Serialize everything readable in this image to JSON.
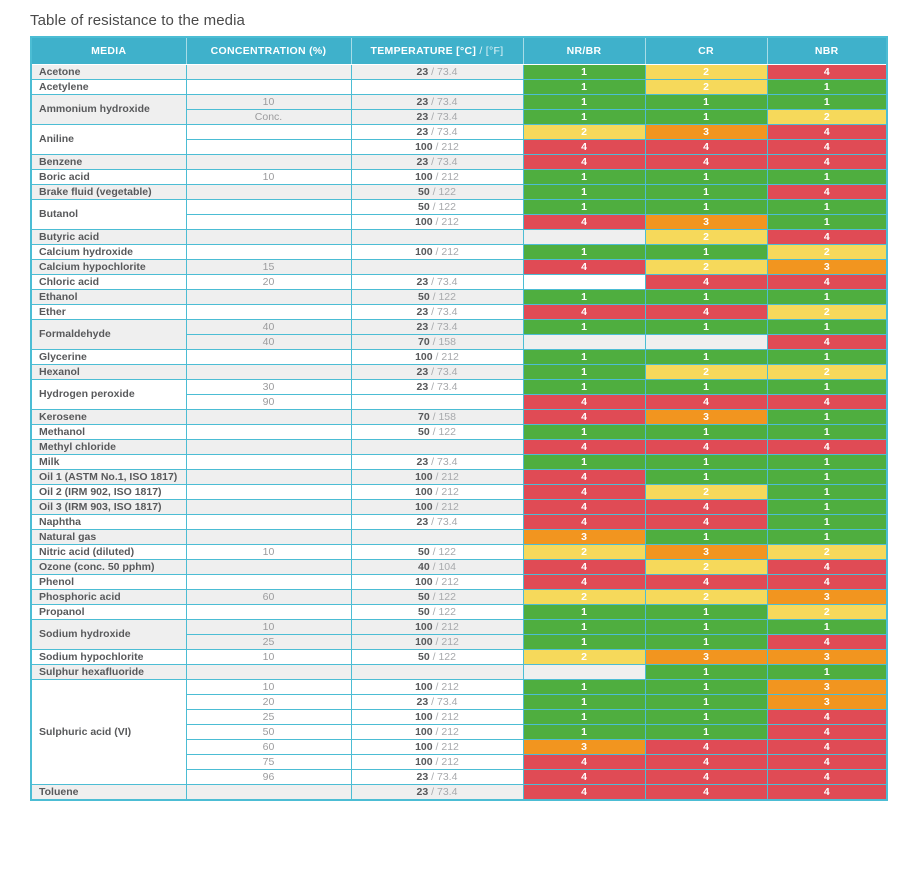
{
  "title": "Table of resistance to the media",
  "colors": {
    "header_bg": "#3FB1CB",
    "grid": "#4CBDD4",
    "row_shade": "#EFEFEF",
    "row_plain": "#FFFFFF",
    "rating_text": "#FFFFFF",
    "rating": {
      "1": "#4FAE3F",
      "2": "#F6D95B",
      "3": "#F2951F",
      "4": "#E04B55"
    }
  },
  "table": {
    "headers": {
      "media": "MEDIA",
      "concentration": "CONCENTRATION (%)",
      "temperature_c": "TEMPERATURE [°C]",
      "temperature_f": " / [°F]",
      "nrbr": "NR/BR",
      "cr": "CR",
      "nbr": "NBR"
    },
    "groups": [
      {
        "media": "Acetone",
        "rows": [
          {
            "conc": "",
            "c": "23",
            "f": "73.4",
            "nrbr": 1,
            "cr": 2,
            "nbr": 4
          }
        ]
      },
      {
        "media": "Acetylene",
        "rows": [
          {
            "conc": "",
            "c": "",
            "f": "",
            "nrbr": 1,
            "cr": 2,
            "nbr": 1
          }
        ]
      },
      {
        "media": "Ammonium hydroxide",
        "rows": [
          {
            "conc": "10",
            "c": "23",
            "f": "73.4",
            "nrbr": 1,
            "cr": 1,
            "nbr": 1
          },
          {
            "conc": "Conc.",
            "c": "23",
            "f": "73.4",
            "nrbr": 1,
            "cr": 1,
            "nbr": 2
          }
        ]
      },
      {
        "media": "Aniline",
        "rows": [
          {
            "conc": "",
            "c": "23",
            "f": "73.4",
            "nrbr": 2,
            "cr": 3,
            "nbr": 4
          },
          {
            "conc": "",
            "c": "100",
            "f": "212",
            "nrbr": 4,
            "cr": 4,
            "nbr": 4
          }
        ]
      },
      {
        "media": "Benzene",
        "rows": [
          {
            "conc": "",
            "c": "23",
            "f": "73.4",
            "nrbr": 4,
            "cr": 4,
            "nbr": 4
          }
        ]
      },
      {
        "media": "Boric acid",
        "rows": [
          {
            "conc": "10",
            "c": "100",
            "f": "212",
            "nrbr": 1,
            "cr": 1,
            "nbr": 1
          }
        ]
      },
      {
        "media": "Brake fluid (vegetable)",
        "rows": [
          {
            "conc": "",
            "c": "50",
            "f": "122",
            "nrbr": 1,
            "cr": 1,
            "nbr": 4
          }
        ]
      },
      {
        "media": "Butanol",
        "rows": [
          {
            "conc": "",
            "c": "50",
            "f": "122",
            "nrbr": 1,
            "cr": 1,
            "nbr": 1
          },
          {
            "conc": "",
            "c": "100",
            "f": "212",
            "nrbr": 4,
            "cr": 3,
            "nbr": 1
          }
        ]
      },
      {
        "media": "Butyric acid",
        "rows": [
          {
            "conc": "",
            "c": "",
            "f": "",
            "nrbr": null,
            "cr": 2,
            "nbr": 4
          }
        ]
      },
      {
        "media": "Calcium hydroxide",
        "rows": [
          {
            "conc": "",
            "c": "100",
            "f": "212",
            "nrbr": 1,
            "cr": 1,
            "nbr": 2
          }
        ]
      },
      {
        "media": "Calcium hypochlorite",
        "rows": [
          {
            "conc": "15",
            "c": "",
            "f": "",
            "nrbr": 4,
            "cr": 2,
            "nbr": 3
          }
        ]
      },
      {
        "media": "Chloric acid",
        "rows": [
          {
            "conc": "20",
            "c": "23",
            "f": "73.4",
            "nrbr": null,
            "cr": 4,
            "nbr": 4
          }
        ]
      },
      {
        "media": "Ethanol",
        "rows": [
          {
            "conc": "",
            "c": "50",
            "f": "122",
            "nrbr": 1,
            "cr": 1,
            "nbr": 1
          }
        ]
      },
      {
        "media": "Ether",
        "rows": [
          {
            "conc": "",
            "c": "23",
            "f": "73.4",
            "nrbr": 4,
            "cr": 4,
            "nbr": 2
          }
        ]
      },
      {
        "media": "Formaldehyde",
        "rows": [
          {
            "conc": "40",
            "c": "23",
            "f": "73.4",
            "nrbr": 1,
            "cr": 1,
            "nbr": 1
          },
          {
            "conc": "40",
            "c": "70",
            "f": "158",
            "nrbr": null,
            "cr": null,
            "nbr": 4
          }
        ]
      },
      {
        "media": "Glycerine",
        "rows": [
          {
            "conc": "",
            "c": "100",
            "f": "212",
            "nrbr": 1,
            "cr": 1,
            "nbr": 1
          }
        ]
      },
      {
        "media": "Hexanol",
        "rows": [
          {
            "conc": "",
            "c": "23",
            "f": "73.4",
            "nrbr": 1,
            "cr": 2,
            "nbr": 2
          }
        ]
      },
      {
        "media": "Hydrogen peroxide",
        "rows": [
          {
            "conc": "30",
            "c": "23",
            "f": "73.4",
            "nrbr": 1,
            "cr": 1,
            "nbr": 1
          },
          {
            "conc": "90",
            "c": "",
            "f": "",
            "nrbr": 4,
            "cr": 4,
            "nbr": 4
          }
        ]
      },
      {
        "media": "Kerosene",
        "rows": [
          {
            "conc": "",
            "c": "70",
            "f": "158",
            "nrbr": 4,
            "cr": 3,
            "nbr": 1
          }
        ]
      },
      {
        "media": "Methanol",
        "rows": [
          {
            "conc": "",
            "c": "50",
            "f": "122",
            "nrbr": 1,
            "cr": 1,
            "nbr": 1
          }
        ]
      },
      {
        "media": "Methyl chloride",
        "rows": [
          {
            "conc": "",
            "c": "",
            "f": "",
            "nrbr": 4,
            "cr": 4,
            "nbr": 4
          }
        ]
      },
      {
        "media": "Milk",
        "rows": [
          {
            "conc": "",
            "c": "23",
            "f": "73.4",
            "nrbr": 1,
            "cr": 1,
            "nbr": 1
          }
        ]
      },
      {
        "media": "Oil 1 (ASTM No.1, ISO 1817)",
        "rows": [
          {
            "conc": "",
            "c": "100",
            "f": "212",
            "nrbr": 4,
            "cr": 1,
            "nbr": 1
          }
        ]
      },
      {
        "media": "Oil 2 (IRM 902, ISO 1817)",
        "rows": [
          {
            "conc": "",
            "c": "100",
            "f": "212",
            "nrbr": 4,
            "cr": 2,
            "nbr": 1
          }
        ]
      },
      {
        "media": "Oil 3 (IRM 903, ISO 1817)",
        "rows": [
          {
            "conc": "",
            "c": "100",
            "f": "212",
            "nrbr": 4,
            "cr": 4,
            "nbr": 1
          }
        ]
      },
      {
        "media": "Naphtha",
        "rows": [
          {
            "conc": "",
            "c": "23",
            "f": "73.4",
            "nrbr": 4,
            "cr": 4,
            "nbr": 1
          }
        ]
      },
      {
        "media": "Natural gas",
        "rows": [
          {
            "conc": "",
            "c": "",
            "f": "",
            "nrbr": 3,
            "cr": 1,
            "nbr": 1
          }
        ]
      },
      {
        "media": "Nitric acid (diluted)",
        "rows": [
          {
            "conc": "10",
            "c": "50",
            "f": "122",
            "nrbr": 2,
            "cr": 3,
            "nbr": 2
          }
        ]
      },
      {
        "media": "Ozone (conc. 50 pphm)",
        "rows": [
          {
            "conc": "",
            "c": "40",
            "f": "104",
            "nrbr": 4,
            "cr": 2,
            "nbr": 4
          }
        ]
      },
      {
        "media": "Phenol",
        "rows": [
          {
            "conc": "",
            "c": "100",
            "f": "212",
            "nrbr": 4,
            "cr": 4,
            "nbr": 4
          }
        ]
      },
      {
        "media": "Phosphoric acid",
        "rows": [
          {
            "conc": "60",
            "c": "50",
            "f": "122",
            "nrbr": 2,
            "cr": 2,
            "nbr": 3
          }
        ]
      },
      {
        "media": "Propanol",
        "rows": [
          {
            "conc": "",
            "c": "50",
            "f": "122",
            "nrbr": 1,
            "cr": 1,
            "nbr": 2
          }
        ]
      },
      {
        "media": "Sodium hydroxide",
        "rows": [
          {
            "conc": "10",
            "c": "100",
            "f": "212",
            "nrbr": 1,
            "cr": 1,
            "nbr": 1
          },
          {
            "conc": "25",
            "c": "100",
            "f": "212",
            "nrbr": 1,
            "cr": 1,
            "nbr": 4
          }
        ]
      },
      {
        "media": "Sodium hypochlorite",
        "rows": [
          {
            "conc": "10",
            "c": "50",
            "f": "122",
            "nrbr": 2,
            "cr": 3,
            "nbr": 3
          }
        ]
      },
      {
        "media": "Sulphur hexafluoride",
        "rows": [
          {
            "conc": "",
            "c": "",
            "f": "",
            "nrbr": null,
            "cr": 1,
            "nbr": 1
          }
        ]
      },
      {
        "media": "Sulphuric acid (VI)",
        "rows": [
          {
            "conc": "10",
            "c": "100",
            "f": "212",
            "nrbr": 1,
            "cr": 1,
            "nbr": 3
          },
          {
            "conc": "20",
            "c": "23",
            "f": "73.4",
            "nrbr": 1,
            "cr": 1,
            "nbr": 3
          },
          {
            "conc": "25",
            "c": "100",
            "f": "212",
            "nrbr": 1,
            "cr": 1,
            "nbr": 4
          },
          {
            "conc": "50",
            "c": "100",
            "f": "212",
            "nrbr": 1,
            "cr": 1,
            "nbr": 4
          },
          {
            "conc": "60",
            "c": "100",
            "f": "212",
            "nrbr": 3,
            "cr": 4,
            "nbr": 4
          },
          {
            "conc": "75",
            "c": "100",
            "f": "212",
            "nrbr": 4,
            "cr": 4,
            "nbr": 4
          },
          {
            "conc": "96",
            "c": "23",
            "f": "73.4",
            "nrbr": 4,
            "cr": 4,
            "nbr": 4
          }
        ]
      },
      {
        "media": "Toluene",
        "rows": [
          {
            "conc": "",
            "c": "23",
            "f": "73.4",
            "nrbr": 4,
            "cr": 4,
            "nbr": 4
          }
        ]
      }
    ]
  }
}
